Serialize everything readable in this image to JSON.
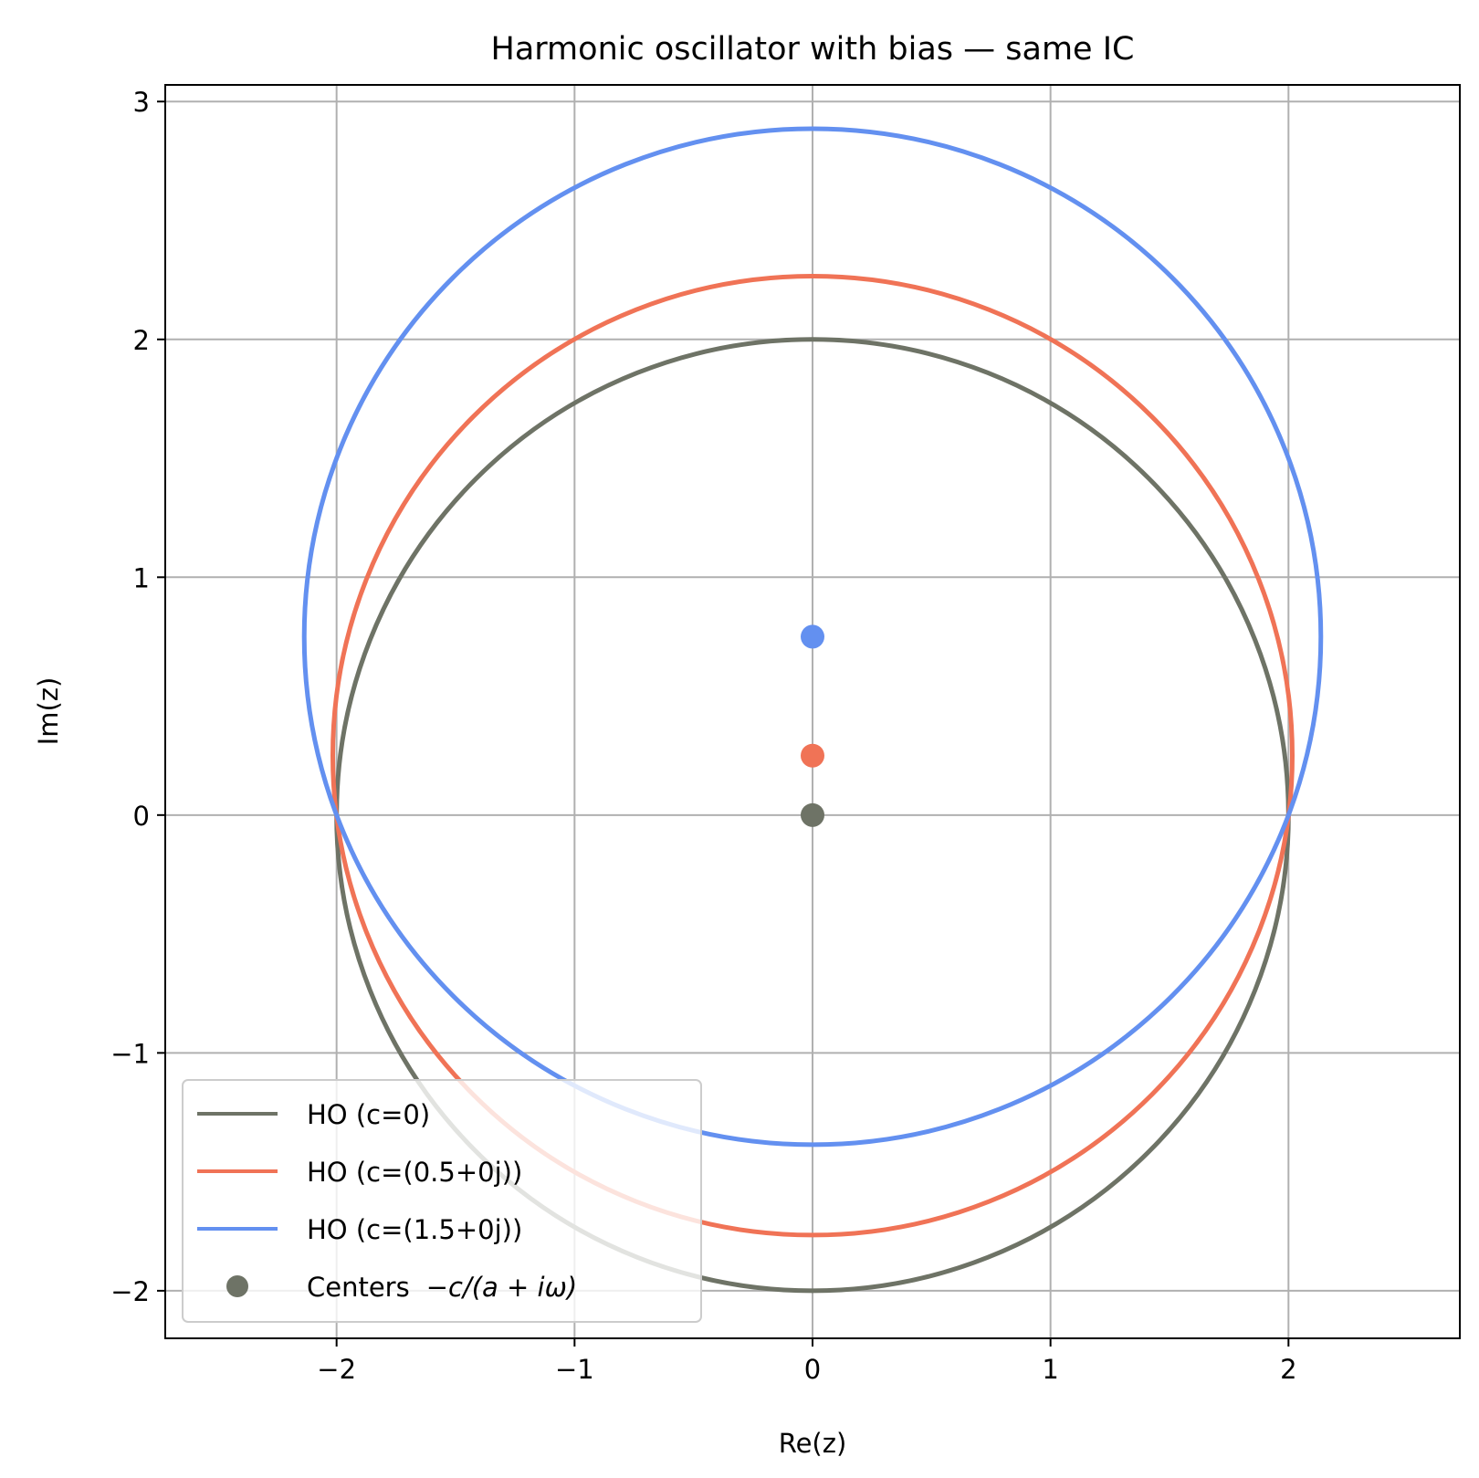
{
  "chart_data": {
    "type": "line",
    "title": "Harmonic oscillator with bias — same IC",
    "xlabel": "Re(z)",
    "ylabel": "Im(z)",
    "xlim": [
      -2.72,
      2.72
    ],
    "ylim": [
      -2.2,
      3.07
    ],
    "xticks": [
      -2,
      -1,
      0,
      1,
      2
    ],
    "yticks": [
      -2,
      -1,
      0,
      1,
      2,
      3
    ],
    "xtick_labels": [
      "−2",
      "−1",
      "0",
      "1",
      "2"
    ],
    "ytick_labels": [
      "−2",
      "−1",
      "0",
      "1",
      "2",
      "3"
    ],
    "grid": true,
    "legend_position": "lower-left",
    "aspect": "equal",
    "series": [
      {
        "name": "HO (c=0)",
        "kind": "circle",
        "center": [
          0,
          0
        ],
        "radius": 2.0,
        "color": "#6e7366"
      },
      {
        "name": "HO (c=(0.5+0j))",
        "kind": "circle",
        "center": [
          0,
          0.25
        ],
        "radius": 2.016,
        "color": "#f07356"
      },
      {
        "name": "HO (c=(1.5+0j))",
        "kind": "circle",
        "center": [
          0,
          0.75
        ],
        "radius": 2.136,
        "color": "#6390f0"
      }
    ],
    "centers": {
      "name": "Centers",
      "math_label": "−c/(a + iω)",
      "points": [
        {
          "x": 0,
          "y": 0,
          "color": "#6e7366"
        },
        {
          "x": 0,
          "y": 0.25,
          "color": "#f07356"
        },
        {
          "x": 0,
          "y": 0.75,
          "color": "#6390f0"
        }
      ]
    }
  }
}
